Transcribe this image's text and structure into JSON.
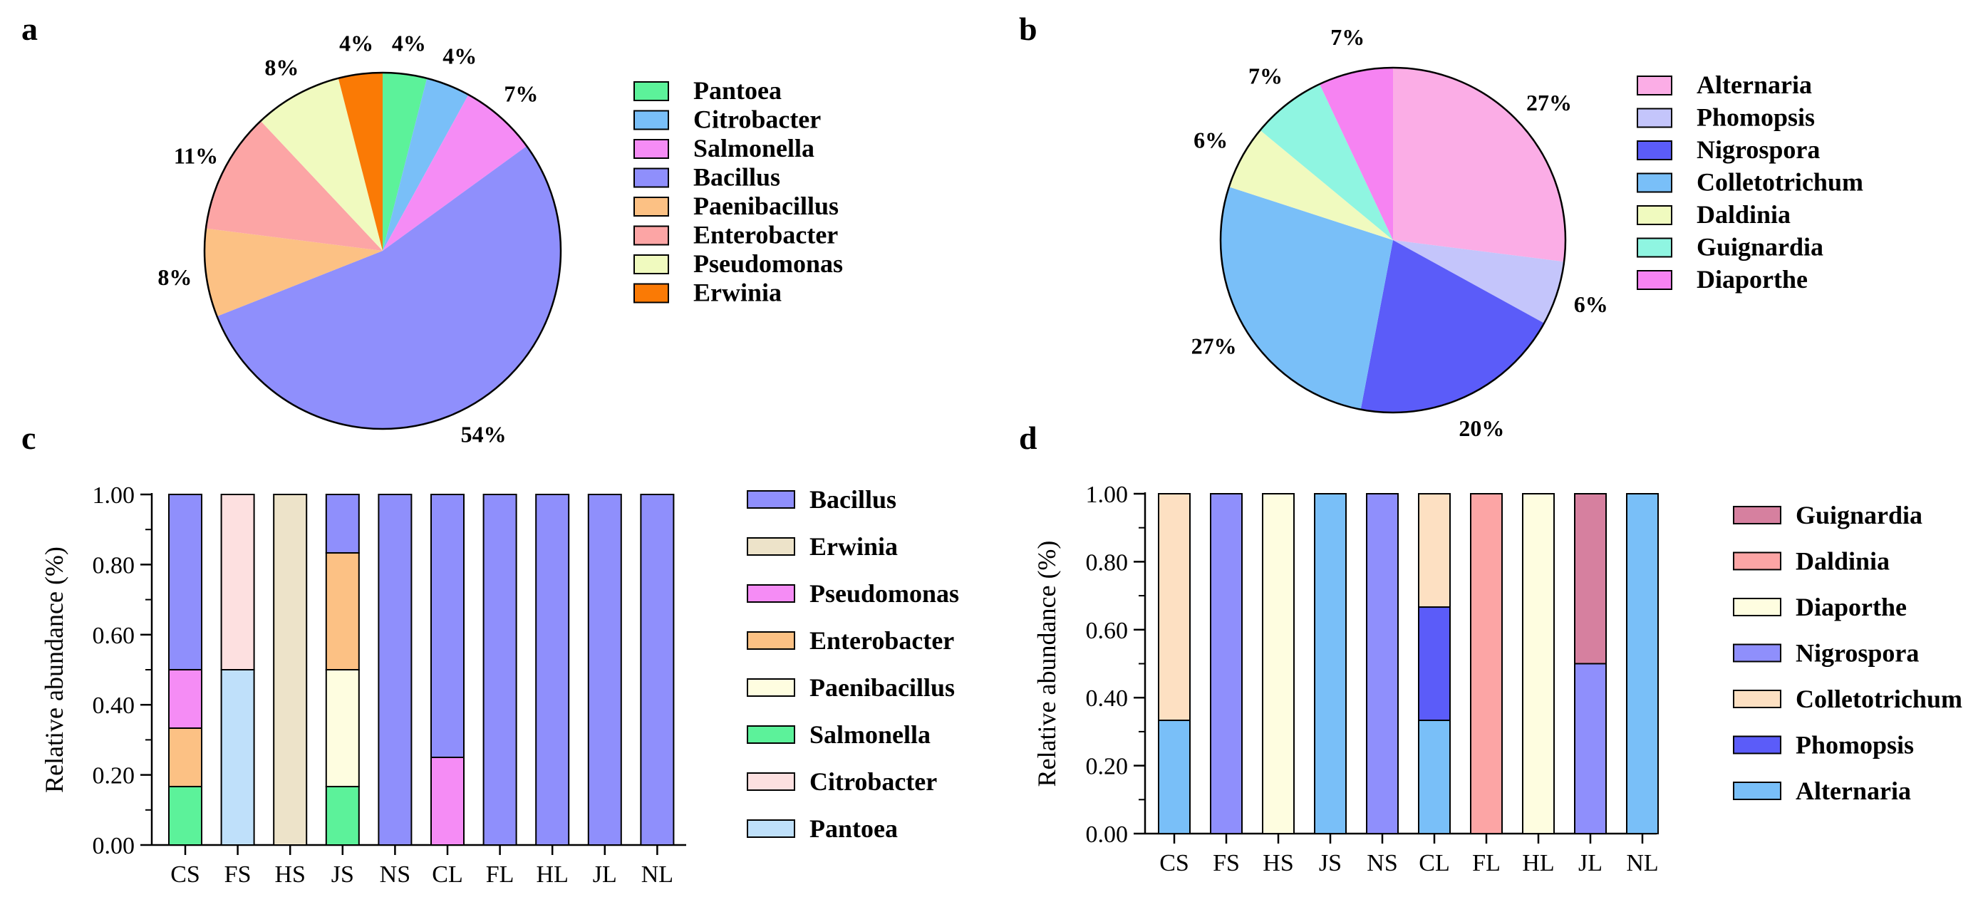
{
  "panels": {
    "a": "a",
    "b": "b",
    "c": "c",
    "d": "d"
  },
  "chart_data": [
    {
      "panel": "a",
      "type": "pie",
      "start": "top",
      "direction": "clockwise",
      "slices": [
        {
          "label": "Pantoea",
          "value": 4,
          "text": "4%",
          "color": "#5cf29a"
        },
        {
          "label": "Citrobacter",
          "value": 4,
          "text": "4%",
          "color": "#79bff8"
        },
        {
          "label": "Salmonella",
          "value": 7,
          "text": "7%",
          "color": "#f58cf5"
        },
        {
          "label": "Bacillus",
          "value": 54,
          "text": "54%",
          "color": "#8f8ffc"
        },
        {
          "label": "Paenibacillus",
          "value": 8,
          "text": "8%",
          "color": "#fcc184"
        },
        {
          "label": "Enterobacter",
          "value": 11,
          "text": "11%",
          "color": "#fca5a5"
        },
        {
          "label": "Pseudomonas",
          "value": 8,
          "text": "8%",
          "color": "#f0fabf"
        },
        {
          "label": "Erwinia",
          "value": 4,
          "text": "4%",
          "color": "#fa7a05"
        }
      ],
      "legend": [
        "Pantoea",
        "Citrobacter",
        "Salmonella",
        "Bacillus",
        "Paenibacillus",
        "Enterobacter",
        "Pseudomonas",
        "Erwinia"
      ]
    },
    {
      "panel": "b",
      "type": "pie",
      "start": "top",
      "direction": "clockwise",
      "slices": [
        {
          "label": "Alternaria",
          "value": 27,
          "text": "27%",
          "color": "#fbade6"
        },
        {
          "label": "Phomopsis",
          "value": 6,
          "text": "6%",
          "color": "#c4c5fb"
        },
        {
          "label": "Nigrospora",
          "value": 20,
          "text": "20%",
          "color": "#5b5cf9"
        },
        {
          "label": "Colletotrichum",
          "value": 27,
          "text": "27%",
          "color": "#79bff8"
        },
        {
          "label": "Daldinia",
          "value": 6,
          "text": "6%",
          "color": "#f0fabf"
        },
        {
          "label": "Guignardia",
          "value": 7,
          "text": "7%",
          "color": "#8ff5e1"
        },
        {
          "label": "Diaporthe",
          "value": 7,
          "text": "7%",
          "color": "#f683f2"
        }
      ],
      "legend": [
        "Alternaria",
        "Phomopsis",
        "Nigrospora",
        "Colletotrichum",
        "Daldinia",
        "Guignardia",
        "Diaporthe"
      ]
    },
    {
      "panel": "c",
      "type": "bar",
      "stacked": true,
      "categories": [
        "CS",
        "FS",
        "HS",
        "JS",
        "NS",
        "CL",
        "FL",
        "HL",
        "JL",
        "NL"
      ],
      "ylabel": "Relative abundance (%)",
      "ylim": [
        0,
        1
      ],
      "yticks": [
        "0.00",
        "0.20",
        "0.40",
        "0.60",
        "0.80",
        "1.00"
      ],
      "series": [
        {
          "name": "Pantoea",
          "color": "#bfe0fa",
          "values": [
            0,
            0.5,
            0,
            0,
            0,
            0,
            0,
            0,
            0,
            0
          ]
        },
        {
          "name": "Citrobacter",
          "color": "#fde0e0",
          "values": [
            0,
            0.5,
            0,
            0,
            0,
            0,
            0,
            0,
            0,
            0
          ]
        },
        {
          "name": "Salmonella",
          "color": "#5cf29a",
          "values": [
            0.1667,
            0,
            0,
            0.1667,
            0,
            0,
            0,
            0,
            0,
            0
          ]
        },
        {
          "name": "Paenibacillus",
          "color": "#fefde0",
          "values": [
            0,
            0,
            0,
            0.3333,
            0,
            0,
            0,
            0,
            0,
            0
          ]
        },
        {
          "name": "Enterobacter",
          "color": "#fcc184",
          "values": [
            0.1667,
            0,
            0,
            0.3333,
            0,
            0,
            0,
            0,
            0,
            0
          ]
        },
        {
          "name": "Pseudomonas",
          "color": "#f58cf5",
          "values": [
            0.1667,
            0,
            0,
            0,
            0,
            0.25,
            0,
            0,
            0,
            0
          ]
        },
        {
          "name": "Erwinia",
          "color": "#ede3c9",
          "values": [
            0,
            0,
            1,
            0,
            0,
            0,
            0,
            0,
            0,
            0
          ]
        },
        {
          "name": "Bacillus",
          "color": "#8f8ffc",
          "values": [
            0.5,
            0,
            0,
            0.1667,
            1,
            0.75,
            1,
            1,
            1,
            1
          ]
        }
      ],
      "legend": [
        "Bacillus",
        "Erwinia",
        "Pseudomonas",
        "Enterobacter",
        "Paenibacillus",
        "Salmonella",
        "Citrobacter",
        "Pantoea"
      ]
    },
    {
      "panel": "d",
      "type": "bar",
      "stacked": true,
      "categories": [
        "CS",
        "FS",
        "HS",
        "JS",
        "NS",
        "CL",
        "FL",
        "HL",
        "JL",
        "NL"
      ],
      "ylabel": "Relative abundance (%)",
      "ylim": [
        0,
        1
      ],
      "yticks": [
        "0.00",
        "0.20",
        "0.40",
        "0.60",
        "0.80",
        "1.00"
      ],
      "series": [
        {
          "name": "Alternaria",
          "color": "#79bff8",
          "values": [
            0.3333,
            0,
            0,
            1,
            0,
            0.3333,
            0,
            0,
            0,
            1
          ]
        },
        {
          "name": "Phomopsis",
          "color": "#5b5cf9",
          "values": [
            0,
            0,
            0,
            0,
            0,
            0.3333,
            0,
            0,
            0,
            0
          ]
        },
        {
          "name": "Colletotrichum",
          "color": "#fde0c2",
          "values": [
            0.6667,
            0,
            0,
            0,
            0,
            0.3333,
            0,
            0,
            0,
            0
          ]
        },
        {
          "name": "Nigrospora",
          "color": "#8f8ffc",
          "values": [
            0,
            1,
            0,
            0,
            1,
            0,
            0,
            0,
            0.5,
            0
          ]
        },
        {
          "name": "Diaporthe",
          "color": "#fefde0",
          "values": [
            0,
            0,
            1,
            0,
            0,
            0,
            0,
            1,
            0,
            0
          ]
        },
        {
          "name": "Daldinia",
          "color": "#fca5a5",
          "values": [
            0,
            0,
            0,
            0,
            0,
            0,
            1,
            0,
            0,
            0
          ]
        },
        {
          "name": "Guignardia",
          "color": "#d6809f",
          "values": [
            0,
            0,
            0,
            0,
            0,
            0,
            0,
            0,
            0.5,
            0
          ]
        }
      ],
      "legend": [
        "Guignardia",
        "Daldinia",
        "Diaporthe",
        "Nigrospora",
        "Colletotrichum",
        "Phomopsis",
        "Alternaria"
      ]
    }
  ]
}
